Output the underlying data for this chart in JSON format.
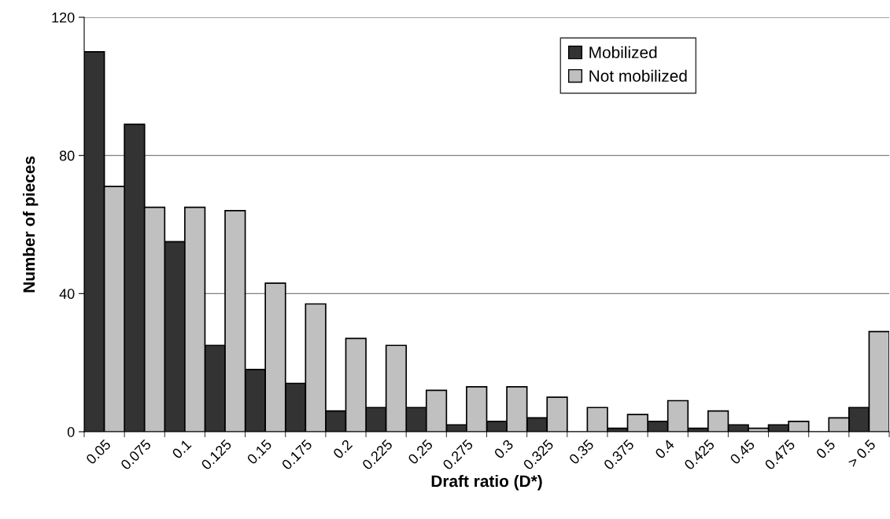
{
  "chart_data": {
    "type": "bar",
    "xlabel": "Draft ratio (D*)",
    "ylabel": "Number of pieces",
    "categories": [
      "0.05",
      "0.075",
      "0.1",
      "0.125",
      "0.15",
      "0.175",
      "0.2",
      "0.225",
      "0.25",
      "0.275",
      "0.3",
      "0.325",
      "0.35",
      "0.375",
      "0.4",
      "0.425",
      "0.45",
      "0.475",
      "0.5",
      "> 0.5"
    ],
    "series": [
      {
        "name": "Mobilized",
        "color": "#333333",
        "values": [
          110,
          89,
          55,
          25,
          18,
          14,
          6,
          7,
          7,
          2,
          3,
          4,
          0,
          1,
          3,
          1,
          2,
          2,
          0,
          7
        ]
      },
      {
        "name": "Not mobilized",
        "color": "#c0c0c0",
        "values": [
          71,
          65,
          65,
          64,
          43,
          37,
          27,
          25,
          12,
          13,
          13,
          10,
          7,
          5,
          9,
          6,
          1,
          3,
          4,
          29
        ]
      }
    ],
    "ylim": [
      0,
      120
    ],
    "yticks": [
      0,
      40,
      80,
      120
    ],
    "grid": "y",
    "legend": "top right"
  }
}
